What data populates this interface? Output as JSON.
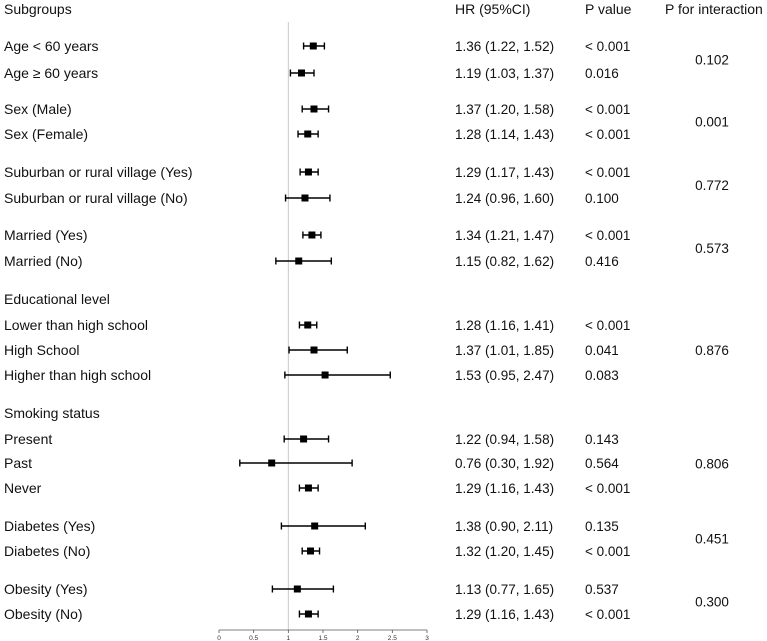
{
  "chart_data": {
    "type": "forest",
    "headers": {
      "subgroups": "Subgroups",
      "hr": "HR (95%CI)",
      "p": "P value",
      "p_int": "P for interaction"
    },
    "reference_line": 1,
    "xlim": [
      0,
      3
    ],
    "x_ticks": [
      "0",
      "0.5",
      "1",
      "1.5",
      "2",
      "2.5",
      "3"
    ],
    "rows": [
      {
        "label": "Age < 60 years",
        "hr": 1.36,
        "lo": 1.22,
        "hi": 1.52,
        "ci_text": "1.36 (1.22, 1.52)",
        "p": "< 0.001"
      },
      {
        "label": "Age ≥ 60 years",
        "hr": 1.19,
        "lo": 1.03,
        "hi": 1.37,
        "ci_text": "1.19 (1.03, 1.37)",
        "p": "0.016"
      },
      {
        "label": "Sex (Male)",
        "hr": 1.37,
        "lo": 1.2,
        "hi": 1.58,
        "ci_text": "1.37 (1.20, 1.58)",
        "p": "< 0.001"
      },
      {
        "label": "Sex (Female)",
        "hr": 1.28,
        "lo": 1.14,
        "hi": 1.43,
        "ci_text": "1.28 (1.14, 1.43)",
        "p": "< 0.001"
      },
      {
        "label": "Suburban or rural village (Yes)",
        "hr": 1.29,
        "lo": 1.17,
        "hi": 1.43,
        "ci_text": "1.29 (1.17, 1.43)",
        "p": "< 0.001"
      },
      {
        "label": "Suburban or rural village (No)",
        "hr": 1.24,
        "lo": 0.96,
        "hi": 1.6,
        "ci_text": "1.24 (0.96, 1.60)",
        "p": "0.100"
      },
      {
        "label": "Married (Yes)",
        "hr": 1.34,
        "lo": 1.21,
        "hi": 1.47,
        "ci_text": "1.34 (1.21, 1.47)",
        "p": "< 0.001"
      },
      {
        "label": "Married (No)",
        "hr": 1.15,
        "lo": 0.82,
        "hi": 1.62,
        "ci_text": "1.15 (0.82, 1.62)",
        "p": "0.416"
      },
      {
        "label": "Educational level",
        "heading": true
      },
      {
        "label": "Lower than high school",
        "hr": 1.28,
        "lo": 1.16,
        "hi": 1.41,
        "ci_text": "1.28 (1.16, 1.41)",
        "p": "< 0.001"
      },
      {
        "label": "High School",
        "hr": 1.37,
        "lo": 1.01,
        "hi": 1.85,
        "ci_text": "1.37 (1.01, 1.85)",
        "p": "0.041"
      },
      {
        "label": "Higher than high school",
        "hr": 1.53,
        "lo": 0.95,
        "hi": 2.47,
        "ci_text": "1.53 (0.95, 2.47)",
        "p": "0.083"
      },
      {
        "label": "Smoking status",
        "heading": true
      },
      {
        "label": "Present",
        "hr": 1.22,
        "lo": 0.94,
        "hi": 1.58,
        "ci_text": "1.22 (0.94, 1.58)",
        "p": "0.143"
      },
      {
        "label": "Past",
        "hr": 0.76,
        "lo": 0.3,
        "hi": 1.92,
        "ci_text": "0.76 (0.30, 1.92)",
        "p": "0.564"
      },
      {
        "label": "Never",
        "hr": 1.29,
        "lo": 1.16,
        "hi": 1.43,
        "ci_text": "1.29 (1.16, 1.43)",
        "p": "< 0.001"
      },
      {
        "label": "Diabetes (Yes)",
        "hr": 1.38,
        "lo": 0.9,
        "hi": 2.11,
        "ci_text": "1.38 (0.90, 2.11)",
        "p": "0.135"
      },
      {
        "label": "Diabetes (No)",
        "hr": 1.32,
        "lo": 1.2,
        "hi": 1.45,
        "ci_text": "1.32 (1.20, 1.45)",
        "p": "< 0.001"
      },
      {
        "label": "Obesity (Yes)",
        "hr": 1.13,
        "lo": 0.77,
        "hi": 1.65,
        "ci_text": "1.13 (0.77, 1.65)",
        "p": "0.537"
      },
      {
        "label": "Obesity (No)",
        "hr": 1.29,
        "lo": 1.16,
        "hi": 1.43,
        "ci_text": "1.29 (1.16, 1.43)",
        "p": "< 0.001"
      }
    ],
    "interaction": [
      {
        "value": "0.102",
        "rows": [
          0,
          1
        ]
      },
      {
        "value": "0.001",
        "rows": [
          2,
          3
        ]
      },
      {
        "value": "0.772",
        "rows": [
          4,
          5
        ]
      },
      {
        "value": "0.573",
        "rows": [
          6,
          7
        ]
      },
      {
        "value": "0.876",
        "rows": [
          9,
          11
        ]
      },
      {
        "value": "0.806",
        "rows": [
          13,
          15
        ]
      },
      {
        "value": "0.451",
        "rows": [
          16,
          17
        ]
      },
      {
        "value": "0.300",
        "rows": [
          18,
          19
        ]
      }
    ]
  }
}
